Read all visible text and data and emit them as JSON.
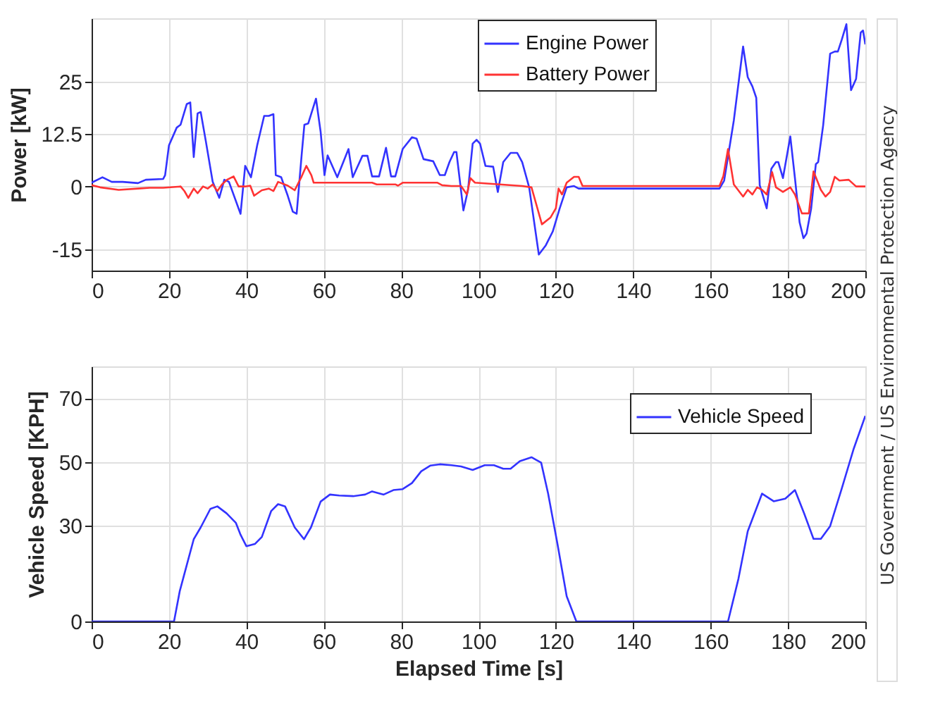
{
  "chart_data": [
    {
      "type": "line",
      "ylabel": "Power [kW]",
      "xlim": [
        0,
        200
      ],
      "ylim": [
        -20,
        40
      ],
      "xticks": [
        0,
        20,
        40,
        60,
        80,
        100,
        120,
        140,
        160,
        180,
        200
      ],
      "yticks": [
        -15,
        0,
        12.5,
        25
      ],
      "grid": true,
      "legend": "top right",
      "series": [
        {
          "name": "Engine Power",
          "color": "#3333ff",
          "x": [
            0,
            2.8,
            5.2,
            8,
            12,
            14,
            18.5,
            19,
            20,
            22,
            23,
            24.6,
            25.5,
            26.4,
            27.4,
            28.2,
            29.5,
            31.3,
            33,
            34.3,
            35.5,
            38.5,
            39.7,
            41.2,
            42.8,
            44.6,
            45.8,
            47,
            47.6,
            49,
            50.7,
            52,
            53,
            54.3,
            55,
            56,
            58,
            59.2,
            60.2,
            61,
            63.5,
            66.4,
            67.5,
            70,
            71.3,
            72.5,
            74.3,
            76.1,
            77.4,
            78.5,
            80.4,
            82.8,
            84,
            85.8,
            88.3,
            90,
            91.3,
            92.5,
            93.7,
            94.3,
            96.1,
            97.3,
            98.5,
            99.5,
            100.4,
            101.8,
            103.8,
            105,
            106.4,
            108.3,
            110,
            111.3,
            113.1,
            115.6,
            117.4,
            119.2,
            121,
            122.8,
            124.7,
            125.9,
            162.3,
            163.5,
            166,
            168.4,
            169.6,
            170.8,
            171.8,
            172.7,
            174.5,
            175.7,
            176.9,
            177.5,
            178.7,
            180.6,
            181.8,
            183,
            184,
            184.8,
            186,
            187.2,
            187.8,
            189.1,
            190.9,
            192.1,
            192.9,
            193.9,
            195.1,
            196.3,
            197.6,
            198.8,
            199.4,
            200
          ],
          "values": [
            0.9,
            2.2,
            1.1,
            1.1,
            0.8,
            1.6,
            1.8,
            2.7,
            9.8,
            14,
            14.7,
            19.6,
            20,
            7,
            17.4,
            17.7,
            10.9,
            1.1,
            -2.7,
            1.6,
            1.1,
            -6.5,
            4.9,
            2.2,
            9.8,
            16.8,
            16.8,
            17.2,
            2.7,
            2.2,
            -2.2,
            -6,
            -6.5,
            7.6,
            14.7,
            15,
            20.9,
            13,
            2.7,
            7.4,
            2.2,
            8.9,
            2.2,
            7.3,
            7.3,
            2.4,
            2.4,
            9.2,
            2.4,
            2.4,
            8.9,
            11.7,
            11.4,
            6.5,
            6,
            2.7,
            2.7,
            5.8,
            8.2,
            8.2,
            -5.7,
            -0.8,
            10.2,
            11.1,
            10.2,
            4.9,
            4.7,
            -1.3,
            5.8,
            8,
            8,
            5.8,
            -0.2,
            -16.2,
            -14,
            -10.7,
            -5.2,
            -0.2,
            0.1,
            -0.5,
            -0.5,
            1.4,
            15.7,
            33.3,
            26,
            23.8,
            21.1,
            0.3,
            -5.2,
            4.2,
            5.8,
            5.8,
            2,
            11.9,
            2,
            -8.5,
            -12.3,
            -11.2,
            -5.2,
            5.3,
            5.8,
            14.6,
            31.6,
            32.1,
            32.1,
            34.9,
            38.6,
            22.9,
            25.6,
            36.6,
            37.1,
            33.8
          ]
        },
        {
          "name": "Battery Power",
          "color": "#ff3333",
          "x": [
            0,
            2.2,
            7,
            12,
            15,
            18.5,
            23,
            24,
            25,
            26.4,
            27.4,
            28.8,
            30,
            31.3,
            32.5,
            33.7,
            35,
            36.7,
            38,
            39.7,
            41,
            42,
            44,
            45.8,
            47,
            48.2,
            50.7,
            52.5,
            54.3,
            55.5,
            56.8,
            57.4,
            72.5,
            73.7,
            78.5,
            79.2,
            80.4,
            89.4,
            90.6,
            93,
            95.5,
            97,
            97.9,
            99.1,
            111.3,
            113.7,
            116.4,
            118.6,
            120,
            120.7,
            121.6,
            122.8,
            124.7,
            125.9,
            126.9,
            162.3,
            163.3,
            164.5,
            166,
            168.4,
            169.6,
            170.8,
            172,
            173.3,
            174.5,
            175.9,
            176.9,
            178.7,
            180.6,
            181.8,
            183.6,
            185.4,
            186.6,
            188.5,
            189.7,
            190.9,
            192.1,
            193.3,
            195.7,
            197.6,
            200
          ],
          "values": [
            0.3,
            -0.2,
            -0.8,
            -0.5,
            -0.3,
            -0.3,
            0,
            -1.1,
            -2.7,
            -0.5,
            -1.6,
            0,
            -0.5,
            0.5,
            -1.1,
            0.5,
            1.6,
            2.4,
            0,
            0,
            0.2,
            -2.2,
            -0.9,
            -0.5,
            -1.1,
            1.1,
            0.2,
            -0.9,
            2.4,
            4.9,
            2.7,
            0.9,
            0.9,
            0.5,
            0.5,
            0.2,
            0.9,
            0.9,
            0.3,
            0.1,
            0.1,
            -1.9,
            2,
            0.9,
            0.1,
            -0.2,
            -9,
            -7.4,
            -5.2,
            -0.5,
            -1.9,
            0.9,
            2.3,
            2.3,
            0.1,
            0.1,
            2.5,
            8.9,
            0.5,
            -2.4,
            -0.8,
            -1.9,
            -0.2,
            -0.8,
            -1.9,
            3.4,
            -0.2,
            -1.3,
            -0.2,
            -1.9,
            -6.4,
            -6.4,
            3.6,
            -0.8,
            -2.4,
            -1.3,
            2.3,
            1.4,
            1.6,
            0,
            0
          ]
        }
      ]
    },
    {
      "type": "line",
      "xlabel": "Elapsed Time [s]",
      "ylabel": "Vehicle Speed [KPH]",
      "xlim": [
        0,
        200
      ],
      "ylim": [
        0,
        80
      ],
      "xticks": [
        0,
        20,
        40,
        60,
        80,
        100,
        120,
        140,
        160,
        180,
        200
      ],
      "yticks": [
        0,
        30,
        50,
        70
      ],
      "grid": true,
      "legend": "top right",
      "annotations": [
        "US Government / US Environmental Protection Agency"
      ],
      "series": [
        {
          "name": "Vehicle Speed",
          "color": "#3333ff",
          "x": [
            0,
            21.3,
            22.8,
            24.6,
            26.4,
            28.2,
            30.7,
            32.5,
            34.9,
            37.3,
            38.5,
            40,
            42.2,
            44,
            46.4,
            48.2,
            50,
            52.5,
            54.9,
            56.7,
            59.2,
            61.6,
            64,
            67.6,
            70.7,
            72.5,
            75.5,
            78,
            80.4,
            82.8,
            85.2,
            87.6,
            90,
            93,
            95.5,
            98.5,
            101.6,
            104,
            106.4,
            108.3,
            110.7,
            113.7,
            116.2,
            118,
            120.4,
            122.8,
            125.3,
            164.5,
            167.2,
            169.6,
            173.3,
            176.3,
            179.3,
            181.8,
            184.2,
            186.6,
            188.5,
            190.9,
            193.9,
            197,
            200
          ],
          "values": [
            0,
            0,
            9.6,
            17.7,
            25.8,
            29.5,
            35.3,
            36.1,
            33.9,
            30.9,
            27.2,
            23.6,
            24.3,
            26.5,
            34.6,
            36.8,
            36.1,
            29.5,
            25.8,
            29.5,
            37.6,
            39.8,
            39.5,
            39.3,
            39.8,
            40.8,
            39.8,
            41.2,
            41.5,
            43.4,
            47.1,
            48.9,
            49.3,
            49,
            48.6,
            47.5,
            49,
            49,
            47.9,
            47.9,
            50.3,
            51.5,
            49.8,
            40.1,
            24.4,
            7.9,
            0,
            0,
            13.4,
            28.3,
            40.1,
            37.7,
            38.5,
            41.2,
            33.8,
            25.9,
            25.9,
            29.9,
            41.7,
            54.2,
            64.5
          ]
        }
      ]
    }
  ]
}
